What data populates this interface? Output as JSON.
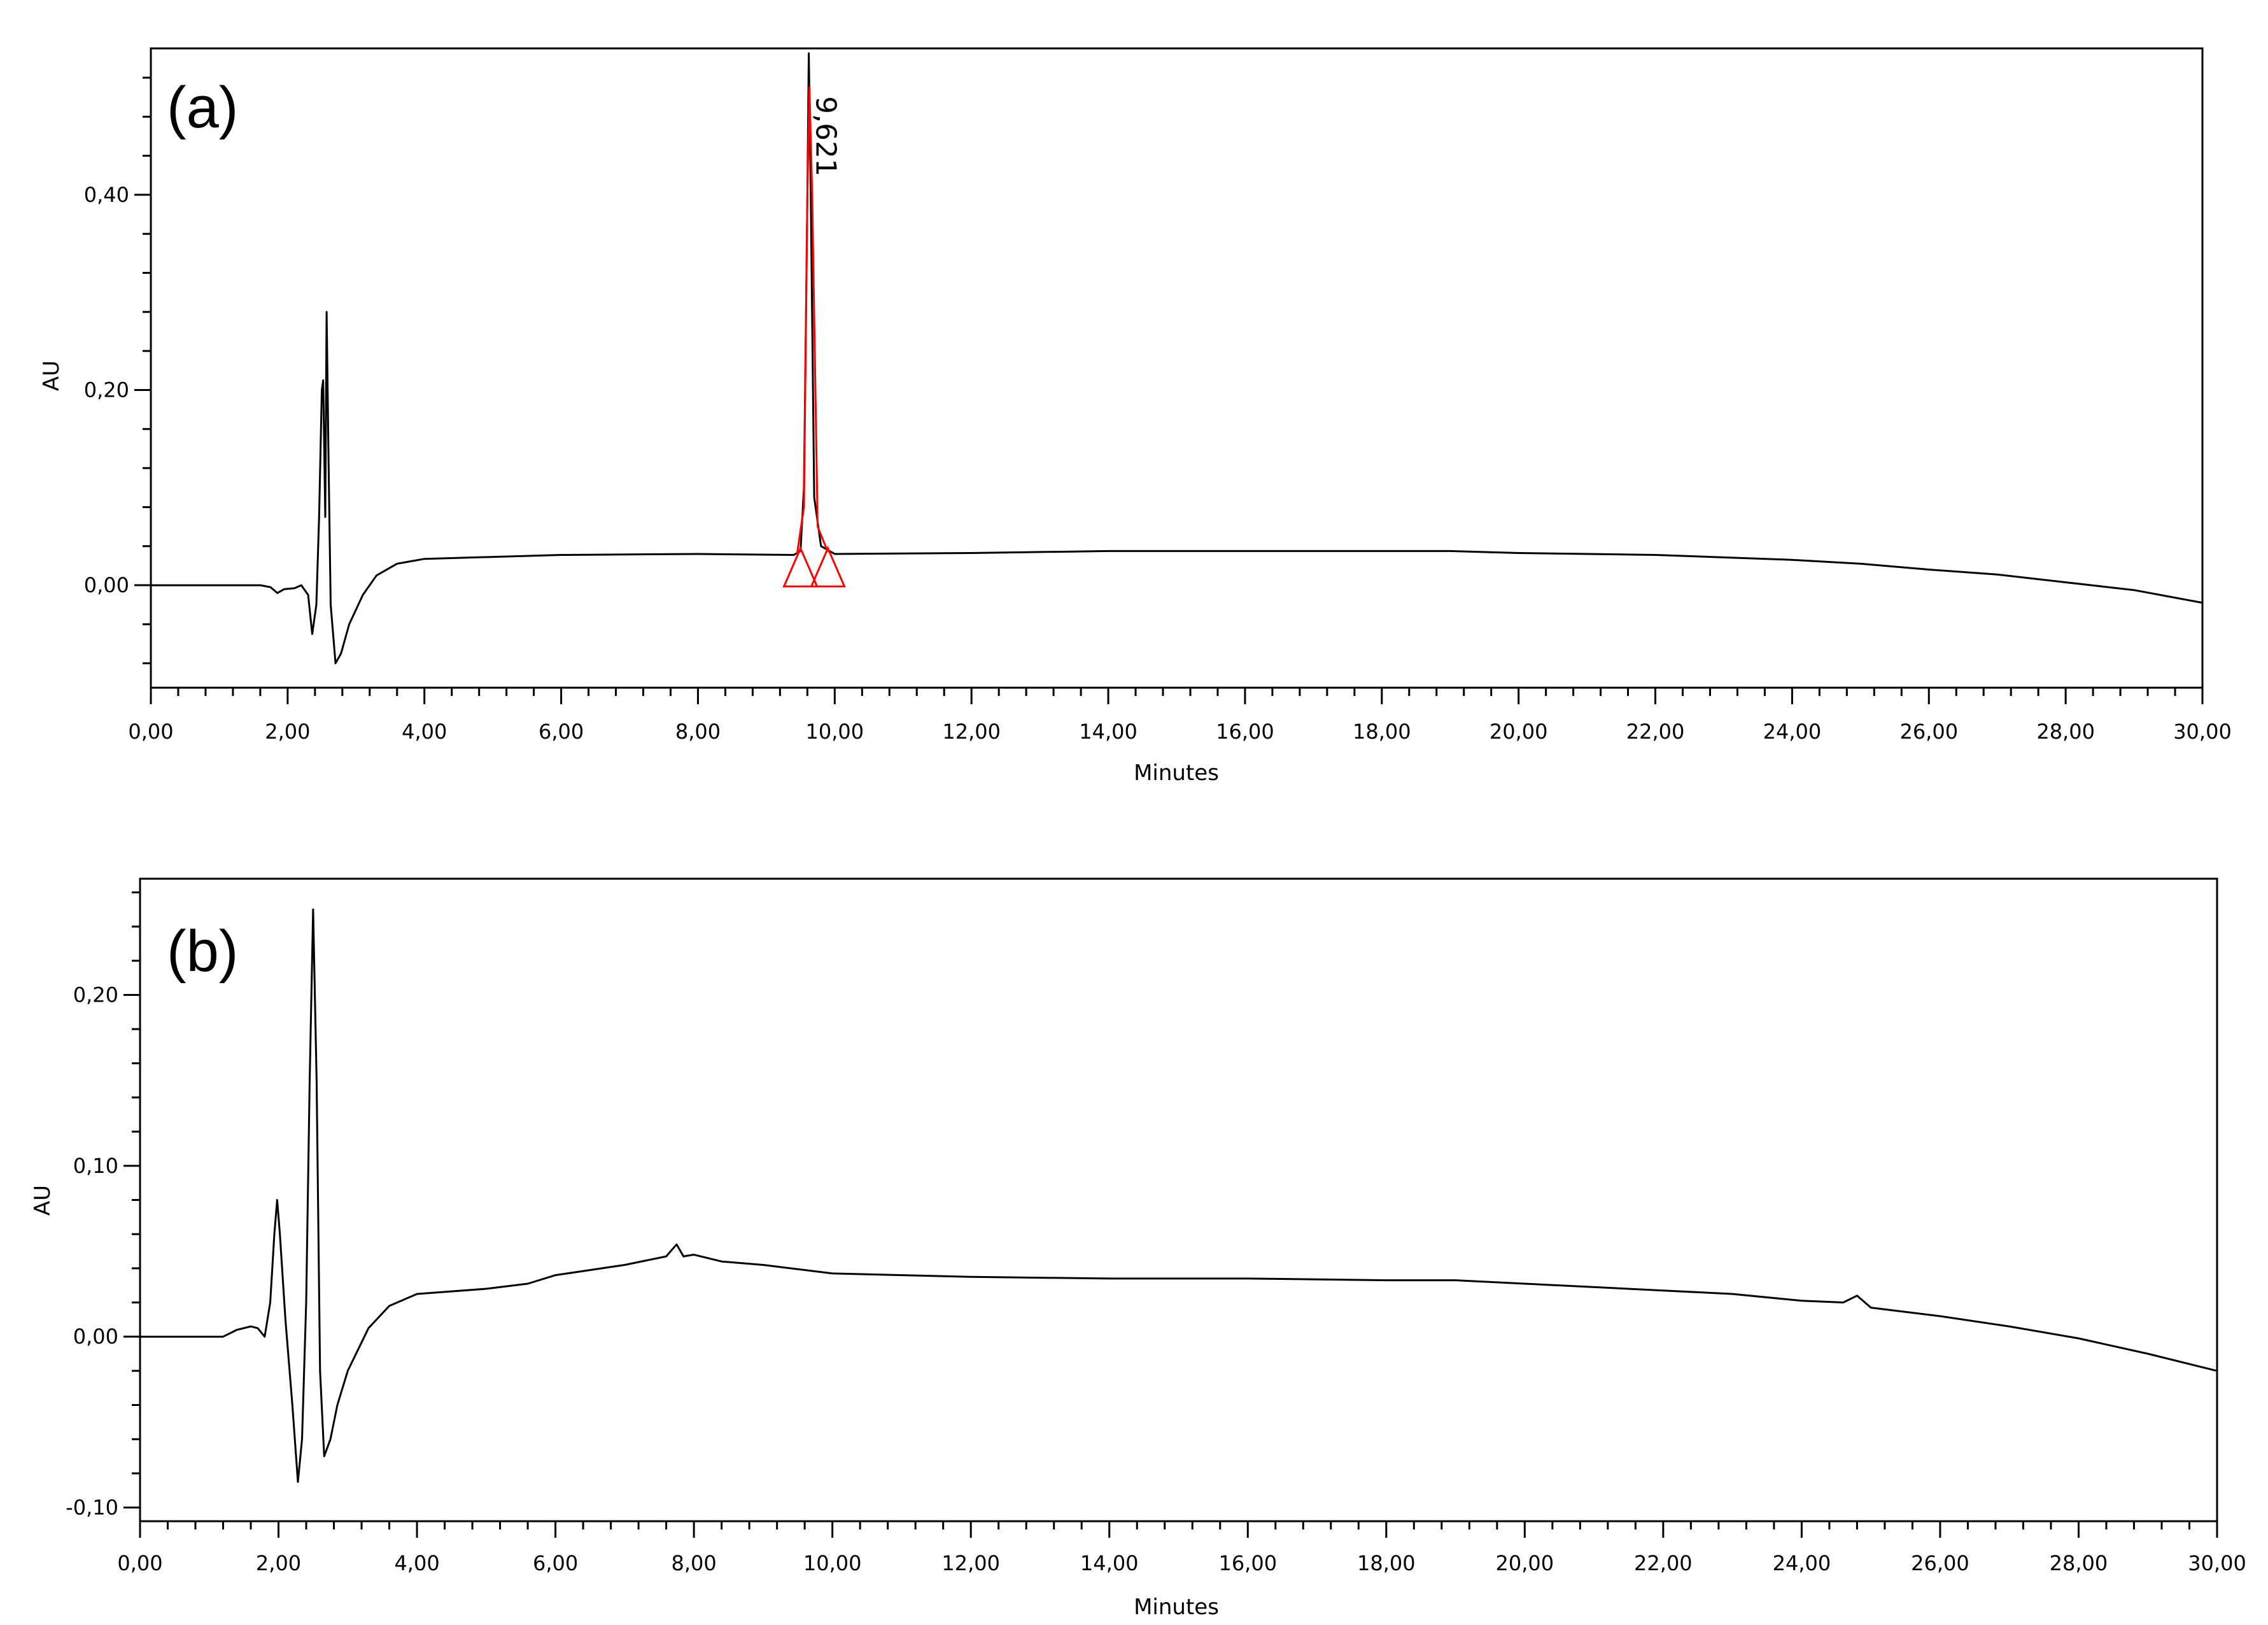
{
  "chart_data": [
    {
      "type": "line",
      "panel_label": "(a)",
      "xlabel": "Minutes",
      "ylabel": "AU",
      "xlim": [
        0,
        30
      ],
      "ylim": [
        -0.105,
        0.55
      ],
      "grid": false,
      "x_major_ticks": [
        0,
        2,
        4,
        6,
        8,
        10,
        12,
        14,
        16,
        18,
        20,
        22,
        24,
        26,
        28,
        30
      ],
      "x_tick_labels": [
        "0,00",
        "2,00",
        "4,00",
        "6,00",
        "8,00",
        "10,00",
        "12,00",
        "14,00",
        "16,00",
        "18,00",
        "20,00",
        "22,00",
        "24,00",
        "26,00",
        "28,00",
        "30,00"
      ],
      "y_major_ticks": [
        0,
        0.2,
        0.4
      ],
      "y_tick_labels": [
        "0,00",
        "0,20",
        "0,40"
      ],
      "series": [
        {
          "color": "#000000",
          "points": [
            [
              0,
              0
            ],
            [
              1.6,
              0
            ],
            [
              1.75,
              -0.002
            ],
            [
              1.85,
              -0.008
            ],
            [
              1.95,
              -0.004
            ],
            [
              2.1,
              -0.003
            ],
            [
              2.2,
              0.0
            ],
            [
              2.3,
              -0.01
            ],
            [
              2.36,
              -0.05
            ],
            [
              2.42,
              -0.02
            ],
            [
              2.46,
              0.07
            ],
            [
              2.5,
              0.2
            ],
            [
              2.52,
              0.21
            ],
            [
              2.55,
              0.07
            ],
            [
              2.57,
              0.28
            ],
            [
              2.6,
              0.12
            ],
            [
              2.63,
              -0.02
            ],
            [
              2.7,
              -0.08
            ],
            [
              2.78,
              -0.07
            ],
            [
              2.9,
              -0.04
            ],
            [
              3.1,
              -0.01
            ],
            [
              3.3,
              0.01
            ],
            [
              3.6,
              0.022
            ],
            [
              4.0,
              0.027
            ],
            [
              5.0,
              0.029
            ],
            [
              6.0,
              0.031
            ],
            [
              8.0,
              0.032
            ],
            [
              9.4,
              0.031
            ],
            [
              9.5,
              0.035
            ],
            [
              9.55,
              0.1
            ],
            [
              9.6,
              0.4
            ],
            [
              9.621,
              0.545
            ],
            [
              9.65,
              0.4
            ],
            [
              9.7,
              0.09
            ],
            [
              9.8,
              0.04
            ],
            [
              10.0,
              0.032
            ],
            [
              12.0,
              0.033
            ],
            [
              14.0,
              0.035
            ],
            [
              16.0,
              0.035
            ],
            [
              18.0,
              0.035
            ],
            [
              19.0,
              0.035
            ],
            [
              20.0,
              0.033
            ],
            [
              22.0,
              0.031
            ],
            [
              24.0,
              0.026
            ],
            [
              25.0,
              0.022
            ],
            [
              26.0,
              0.016
            ],
            [
              27.0,
              0.011
            ],
            [
              28.0,
              0.003
            ],
            [
              29.0,
              -0.005
            ],
            [
              30.0,
              -0.018
            ]
          ]
        },
        {
          "color": "#ff0000",
          "points": [
            [
              9.45,
              0.032
            ],
            [
              9.55,
              0.08
            ],
            [
              9.6,
              0.4
            ],
            [
              9.63,
              0.51
            ],
            [
              9.67,
              0.4
            ],
            [
              9.75,
              0.06
            ],
            [
              9.9,
              0.034
            ]
          ]
        }
      ],
      "annotations": [
        {
          "text": "9,621",
          "x": 9.621,
          "orientation": "vertical",
          "color": "#000000"
        }
      ],
      "markers": [
        {
          "shape": "triangle",
          "x": 9.5,
          "y": 0.0,
          "color": "#ff0000"
        },
        {
          "shape": "triangle",
          "x": 9.9,
          "y": 0.0,
          "color": "#ff0000"
        }
      ]
    },
    {
      "type": "line",
      "panel_label": "(b)",
      "xlabel": "Minutes",
      "ylabel": "AU",
      "xlim": [
        0,
        30
      ],
      "ylim": [
        -0.108,
        0.268
      ],
      "grid": false,
      "x_major_ticks": [
        0,
        2,
        4,
        6,
        8,
        10,
        12,
        14,
        16,
        18,
        20,
        22,
        24,
        26,
        28,
        30
      ],
      "x_tick_labels": [
        "0,00",
        "2,00",
        "4,00",
        "6,00",
        "8,00",
        "10,00",
        "12,00",
        "14,00",
        "16,00",
        "18,00",
        "20,00",
        "22,00",
        "24,00",
        "26,00",
        "28,00",
        "30,00"
      ],
      "y_major_ticks": [
        -0.1,
        0,
        0.1,
        0.2
      ],
      "y_tick_labels": [
        "-0,10",
        "0,00",
        "0,10",
        "0,20"
      ],
      "series": [
        {
          "color": "#000000",
          "points": [
            [
              0,
              0
            ],
            [
              1.2,
              0
            ],
            [
              1.4,
              0.004
            ],
            [
              1.6,
              0.006
            ],
            [
              1.7,
              0.005
            ],
            [
              1.8,
              0.0
            ],
            [
              1.88,
              0.02
            ],
            [
              1.94,
              0.06
            ],
            [
              1.98,
              0.08
            ],
            [
              2.02,
              0.06
            ],
            [
              2.1,
              0.01
            ],
            [
              2.2,
              -0.04
            ],
            [
              2.28,
              -0.085
            ],
            [
              2.34,
              -0.06
            ],
            [
              2.4,
              0.02
            ],
            [
              2.45,
              0.15
            ],
            [
              2.5,
              0.25
            ],
            [
              2.55,
              0.15
            ],
            [
              2.6,
              -0.02
            ],
            [
              2.66,
              -0.07
            ],
            [
              2.75,
              -0.06
            ],
            [
              2.85,
              -0.04
            ],
            [
              3.0,
              -0.02
            ],
            [
              3.3,
              0.005
            ],
            [
              3.6,
              0.018
            ],
            [
              4.0,
              0.025
            ],
            [
              5.0,
              0.028
            ],
            [
              5.6,
              0.031
            ],
            [
              6.0,
              0.036
            ],
            [
              7.0,
              0.042
            ],
            [
              7.6,
              0.047
            ],
            [
              7.75,
              0.054
            ],
            [
              7.85,
              0.047
            ],
            [
              8.0,
              0.048
            ],
            [
              8.4,
              0.044
            ],
            [
              9.0,
              0.042
            ],
            [
              10.0,
              0.037
            ],
            [
              12.0,
              0.035
            ],
            [
              14.0,
              0.034
            ],
            [
              16.0,
              0.034
            ],
            [
              18.0,
              0.033
            ],
            [
              19.0,
              0.033
            ],
            [
              20.0,
              0.031
            ],
            [
              22.0,
              0.027
            ],
            [
              23.0,
              0.025
            ],
            [
              24.0,
              0.021
            ],
            [
              24.6,
              0.02
            ],
            [
              24.8,
              0.024
            ],
            [
              25.0,
              0.017
            ],
            [
              26.0,
              0.012
            ],
            [
              27.0,
              0.006
            ],
            [
              28.0,
              -0.001
            ],
            [
              29.0,
              -0.01
            ],
            [
              30.0,
              -0.02
            ]
          ]
        }
      ]
    }
  ]
}
